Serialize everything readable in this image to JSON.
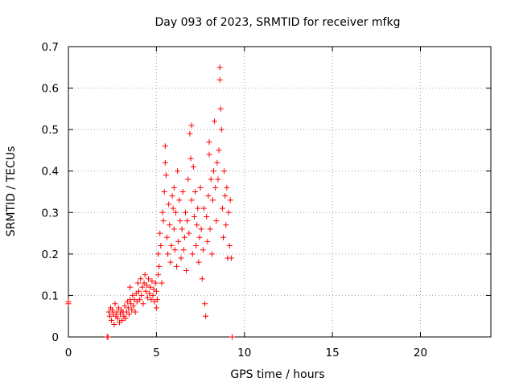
{
  "chart_data": {
    "type": "scatter",
    "title": "Day 093 of 2023, SRMTID for receiver mfkg",
    "xlabel": "GPS time / hours",
    "ylabel": "SRMTID / TECUs",
    "xlim": [
      0,
      24
    ],
    "ylim": [
      0,
      0.7
    ],
    "xticks": [
      0,
      5,
      10,
      15,
      20
    ],
    "xtick_labels": [
      "0",
      "5",
      "10",
      "15",
      "20"
    ],
    "yticks": [
      0,
      0.1,
      0.2,
      0.3,
      0.4,
      0.5,
      0.6,
      0.7
    ],
    "ytick_labels": [
      "0",
      "0.1",
      "0.2",
      "0.3",
      "0.4",
      "0.5",
      "0.6",
      "0.7"
    ],
    "grid": true,
    "marker": "+",
    "marker_color": "#ff0000",
    "series": [
      {
        "name": "SRMTID",
        "points": [
          [
            0.0,
            0.085
          ],
          [
            0.0,
            0.08
          ],
          [
            2.2,
            0.0
          ],
          [
            2.25,
            0.0
          ],
          [
            9.3,
            0.0
          ],
          [
            2.3,
            0.06
          ],
          [
            2.35,
            0.05
          ],
          [
            2.4,
            0.07
          ],
          [
            2.45,
            0.04
          ],
          [
            2.5,
            0.065
          ],
          [
            2.55,
            0.055
          ],
          [
            2.6,
            0.03
          ],
          [
            2.65,
            0.08
          ],
          [
            2.7,
            0.05
          ],
          [
            2.75,
            0.06
          ],
          [
            2.8,
            0.045
          ],
          [
            2.85,
            0.07
          ],
          [
            2.9,
            0.035
          ],
          [
            2.95,
            0.055
          ],
          [
            3.0,
            0.065
          ],
          [
            3.05,
            0.04
          ],
          [
            3.1,
            0.06
          ],
          [
            3.15,
            0.05
          ],
          [
            3.2,
            0.075
          ],
          [
            3.25,
            0.045
          ],
          [
            3.3,
            0.06
          ],
          [
            3.35,
            0.085
          ],
          [
            3.4,
            0.07
          ],
          [
            3.45,
            0.055
          ],
          [
            3.5,
            0.09
          ],
          [
            3.5,
            0.12
          ],
          [
            3.55,
            0.08
          ],
          [
            3.6,
            0.065
          ],
          [
            3.65,
            0.1
          ],
          [
            3.7,
            0.075
          ],
          [
            3.75,
            0.09
          ],
          [
            3.8,
            0.06
          ],
          [
            3.85,
            0.105
          ],
          [
            3.9,
            0.085
          ],
          [
            3.95,
            0.13
          ],
          [
            4.0,
            0.11
          ],
          [
            4.05,
            0.09
          ],
          [
            4.1,
            0.14
          ],
          [
            4.15,
            0.1
          ],
          [
            4.2,
            0.12
          ],
          [
            4.25,
            0.08
          ],
          [
            4.3,
            0.13
          ],
          [
            4.35,
            0.15
          ],
          [
            4.4,
            0.11
          ],
          [
            4.45,
            0.125
          ],
          [
            4.5,
            0.095
          ],
          [
            4.55,
            0.14
          ],
          [
            4.6,
            0.105
          ],
          [
            4.65,
            0.12
          ],
          [
            4.7,
            0.09
          ],
          [
            4.75,
            0.135
          ],
          [
            4.8,
            0.1
          ],
          [
            4.85,
            0.115
          ],
          [
            4.9,
            0.085
          ],
          [
            4.95,
            0.13
          ],
          [
            5.0,
            0.07
          ],
          [
            5.0,
            0.11
          ],
          [
            5.05,
            0.09
          ],
          [
            5.1,
            0.2
          ],
          [
            5.1,
            0.15
          ],
          [
            5.15,
            0.17
          ],
          [
            5.2,
            0.25
          ],
          [
            5.25,
            0.22
          ],
          [
            5.3,
            0.13
          ],
          [
            5.35,
            0.3
          ],
          [
            5.4,
            0.28
          ],
          [
            5.45,
            0.35
          ],
          [
            5.5,
            0.46
          ],
          [
            5.5,
            0.42
          ],
          [
            5.55,
            0.39
          ],
          [
            5.6,
            0.24
          ],
          [
            5.65,
            0.2
          ],
          [
            5.7,
            0.32
          ],
          [
            5.75,
            0.27
          ],
          [
            5.8,
            0.18
          ],
          [
            5.85,
            0.22
          ],
          [
            5.9,
            0.34
          ],
          [
            5.95,
            0.31
          ],
          [
            6.0,
            0.36
          ],
          [
            6.0,
            0.26
          ],
          [
            6.05,
            0.21
          ],
          [
            6.1,
            0.3
          ],
          [
            6.15,
            0.17
          ],
          [
            6.2,
            0.4
          ],
          [
            6.25,
            0.23
          ],
          [
            6.3,
            0.33
          ],
          [
            6.35,
            0.28
          ],
          [
            6.4,
            0.19
          ],
          [
            6.45,
            0.26
          ],
          [
            6.5,
            0.35
          ],
          [
            6.55,
            0.21
          ],
          [
            6.6,
            0.24
          ],
          [
            6.65,
            0.3
          ],
          [
            6.7,
            0.16
          ],
          [
            6.75,
            0.28
          ],
          [
            6.8,
            0.38
          ],
          [
            6.85,
            0.25
          ],
          [
            6.9,
            0.49
          ],
          [
            6.95,
            0.43
          ],
          [
            7.0,
            0.51
          ],
          [
            7.0,
            0.33
          ],
          [
            7.05,
            0.2
          ],
          [
            7.1,
            0.41
          ],
          [
            7.15,
            0.29
          ],
          [
            7.2,
            0.35
          ],
          [
            7.25,
            0.22
          ],
          [
            7.3,
            0.27
          ],
          [
            7.35,
            0.31
          ],
          [
            7.4,
            0.18
          ],
          [
            7.45,
            0.24
          ],
          [
            7.5,
            0.36
          ],
          [
            7.55,
            0.26
          ],
          [
            7.6,
            0.14
          ],
          [
            7.65,
            0.21
          ],
          [
            7.7,
            0.31
          ],
          [
            7.75,
            0.08
          ],
          [
            7.8,
            0.05
          ],
          [
            7.85,
            0.29
          ],
          [
            7.9,
            0.23
          ],
          [
            7.95,
            0.34
          ],
          [
            8.0,
            0.44
          ],
          [
            8.0,
            0.47
          ],
          [
            8.05,
            0.26
          ],
          [
            8.1,
            0.38
          ],
          [
            8.15,
            0.2
          ],
          [
            8.2,
            0.33
          ],
          [
            8.25,
            0.4
          ],
          [
            8.3,
            0.52
          ],
          [
            8.35,
            0.36
          ],
          [
            8.4,
            0.28
          ],
          [
            8.45,
            0.42
          ],
          [
            8.5,
            0.38
          ],
          [
            8.55,
            0.45
          ],
          [
            8.6,
            0.65
          ],
          [
            8.6,
            0.62
          ],
          [
            8.65,
            0.55
          ],
          [
            8.7,
            0.5
          ],
          [
            8.75,
            0.31
          ],
          [
            8.8,
            0.24
          ],
          [
            8.85,
            0.4
          ],
          [
            8.9,
            0.34
          ],
          [
            8.95,
            0.27
          ],
          [
            9.0,
            0.36
          ],
          [
            9.05,
            0.19
          ],
          [
            9.1,
            0.3
          ],
          [
            9.15,
            0.22
          ],
          [
            9.2,
            0.33
          ],
          [
            9.25,
            0.19
          ]
        ]
      }
    ]
  }
}
